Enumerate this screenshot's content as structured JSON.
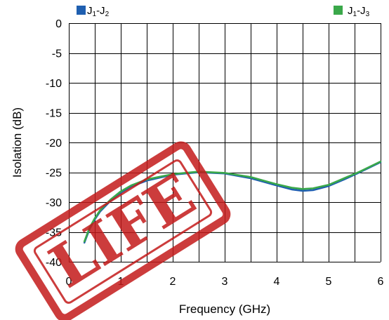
{
  "chart_data": {
    "type": "line",
    "title": "",
    "xlabel": "Frequency (GHz)",
    "ylabel": "Isolation (dB)",
    "xlim": [
      0,
      6
    ],
    "ylim": [
      -40,
      0
    ],
    "xticks": [
      0,
      1,
      2,
      3,
      4,
      5,
      6
    ],
    "yticks": [
      0,
      -5,
      -10,
      -15,
      -20,
      -25,
      -30,
      -35,
      -40
    ],
    "grid": true,
    "x_minor_divisions": 2,
    "legend_placement": "top",
    "series": [
      {
        "name": "J1-J2",
        "color": "#1f5fb0",
        "x": [
          0.3,
          0.4,
          0.5,
          0.6,
          0.8,
          1.0,
          1.2,
          1.5,
          2.0,
          2.5,
          3.0,
          3.5,
          4.0,
          4.3,
          4.5,
          4.7,
          5.0,
          5.3,
          5.6,
          6.0
        ],
        "y": [
          -36.8,
          -34.5,
          -32.9,
          -31.6,
          -29.8,
          -28.4,
          -27.4,
          -26.4,
          -25.4,
          -25.0,
          -25.2,
          -26.0,
          -27.2,
          -27.9,
          -28.1,
          -28.0,
          -27.3,
          -26.2,
          -25.0,
          -23.3
        ]
      },
      {
        "name": "J1-J3",
        "color": "#3aa84a",
        "x": [
          0.3,
          0.4,
          0.5,
          0.6,
          0.8,
          1.0,
          1.2,
          1.5,
          2.0,
          2.5,
          3.0,
          3.5,
          4.0,
          4.3,
          4.5,
          4.7,
          5.0,
          5.3,
          5.6,
          6.0
        ],
        "y": [
          -36.6,
          -34.3,
          -32.7,
          -31.4,
          -29.6,
          -28.2,
          -27.2,
          -26.2,
          -25.3,
          -24.9,
          -25.1,
          -25.8,
          -27.0,
          -27.6,
          -27.8,
          -27.7,
          -27.1,
          -26.0,
          -24.9,
          -23.2
        ]
      }
    ],
    "legend": [
      {
        "main": "J",
        "sub1": "1",
        "dash": "-J",
        "sub2": "2",
        "color": "#1f5fb0"
      },
      {
        "main": "J",
        "sub1": "1",
        "dash": "-J",
        "sub2": "3",
        "color": "#3aa84a"
      }
    ]
  },
  "stamp": {
    "text": "LIFE",
    "color": "#c41b1b"
  }
}
